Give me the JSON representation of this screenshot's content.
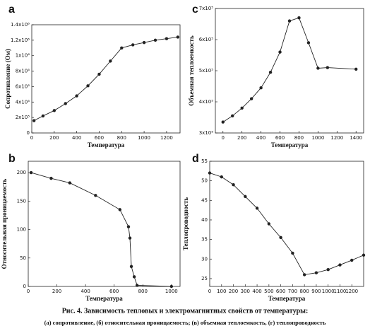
{
  "chart_data": [
    {
      "type": "line",
      "panel_label": "a",
      "xlabel": "Температура",
      "ylabel": "Сопротивление (Ом)",
      "x": [
        20,
        100,
        200,
        300,
        400,
        500,
        600,
        700,
        800,
        900,
        1000,
        1100,
        1200,
        1300
      ],
      "values": [
        160000,
        220000,
        290000,
        380000,
        480000,
        610000,
        760000,
        930000,
        1100000,
        1140000,
        1170000,
        1200000,
        1220000,
        1240000
      ],
      "xlim": [
        0,
        1320
      ],
      "xticks": [
        0,
        200,
        400,
        600,
        800,
        1000,
        1200
      ],
      "ylim": [
        0,
        1400000
      ],
      "yticks": [
        0,
        {
          "value": 200000,
          "label": "2x10⁵"
        },
        {
          "value": 400000,
          "label": "4x10⁵"
        },
        {
          "value": 600000,
          "label": "6x10⁵"
        },
        {
          "value": 800000,
          "label": "8x10⁵"
        },
        {
          "value": 1000000,
          "label": "1x10⁶"
        },
        {
          "value": 1200000,
          "label": "1.2x10⁶"
        },
        {
          "value": 1400000,
          "label": "1.4x10⁶"
        }
      ],
      "color": "#222222"
    },
    {
      "type": "line",
      "panel_label": "c",
      "xlabel": "Температура",
      "ylabel": "Объемная теплоемкость",
      "x": [
        0,
        100,
        200,
        300,
        400,
        500,
        600,
        700,
        800,
        900,
        1000,
        1100,
        1400
      ],
      "values": [
        335000,
        355000,
        380000,
        410000,
        445000,
        495000,
        560000,
        660000,
        670000,
        590000,
        508000,
        510000,
        505000
      ],
      "xlim": [
        -80,
        1480
      ],
      "xticks": [
        0,
        200,
        400,
        600,
        800,
        1000,
        1200,
        1400
      ],
      "ylim": [
        300000,
        700000
      ],
      "yticks": [
        {
          "value": 300000,
          "label": "3x10⁵"
        },
        {
          "value": 400000,
          "label": "4x10⁵"
        },
        {
          "value": 500000,
          "label": "5x10⁵"
        },
        {
          "value": 600000,
          "label": "6x10⁵"
        },
        {
          "value": 700000,
          "label": "7x10⁵"
        }
      ],
      "color": "#222222"
    },
    {
      "type": "line",
      "panel_label": "b",
      "xlabel": "Температура",
      "ylabel": "Относительная проницаемость",
      "x": [
        20,
        160,
        290,
        470,
        640,
        700,
        710,
        720,
        740,
        760,
        1000
      ],
      "values": [
        200,
        190,
        182,
        160,
        135,
        105,
        85,
        35,
        17,
        2,
        0
      ],
      "xlim": [
        0,
        1060
      ],
      "xticks": [
        0,
        200,
        400,
        600,
        800,
        1000
      ],
      "ylim": [
        0,
        220
      ],
      "yticks": [
        0,
        50,
        100,
        150,
        200
      ],
      "color": "#222222"
    },
    {
      "type": "line",
      "panel_label": "d",
      "xlabel": "Температура",
      "ylabel": "Теплопроводность",
      "x": [
        0,
        100,
        200,
        300,
        400,
        500,
        600,
        700,
        800,
        900,
        1000,
        1100,
        1200,
        1300
      ],
      "values": [
        52,
        51,
        49,
        46,
        43,
        39,
        35.5,
        31.5,
        26,
        26.5,
        27.3,
        28.5,
        29.7,
        31
      ],
      "xlim": [
        0,
        1300
      ],
      "xticks": [
        0,
        100,
        200,
        300,
        400,
        500,
        600,
        700,
        800,
        900,
        1000,
        1100,
        1200
      ],
      "ylim": [
        23,
        55
      ],
      "yticks": [
        25,
        30,
        35,
        40,
        45,
        50,
        55
      ],
      "color": "#222222"
    }
  ],
  "caption": {
    "title": "Рис. 4. Зависимость тепловых и электромагнитных свойств от температуры:",
    "subtitle": "(а) сопротивление, (б) относительная проницаемость; (в) объемная теплоемкость, (г) теплопроводность"
  }
}
